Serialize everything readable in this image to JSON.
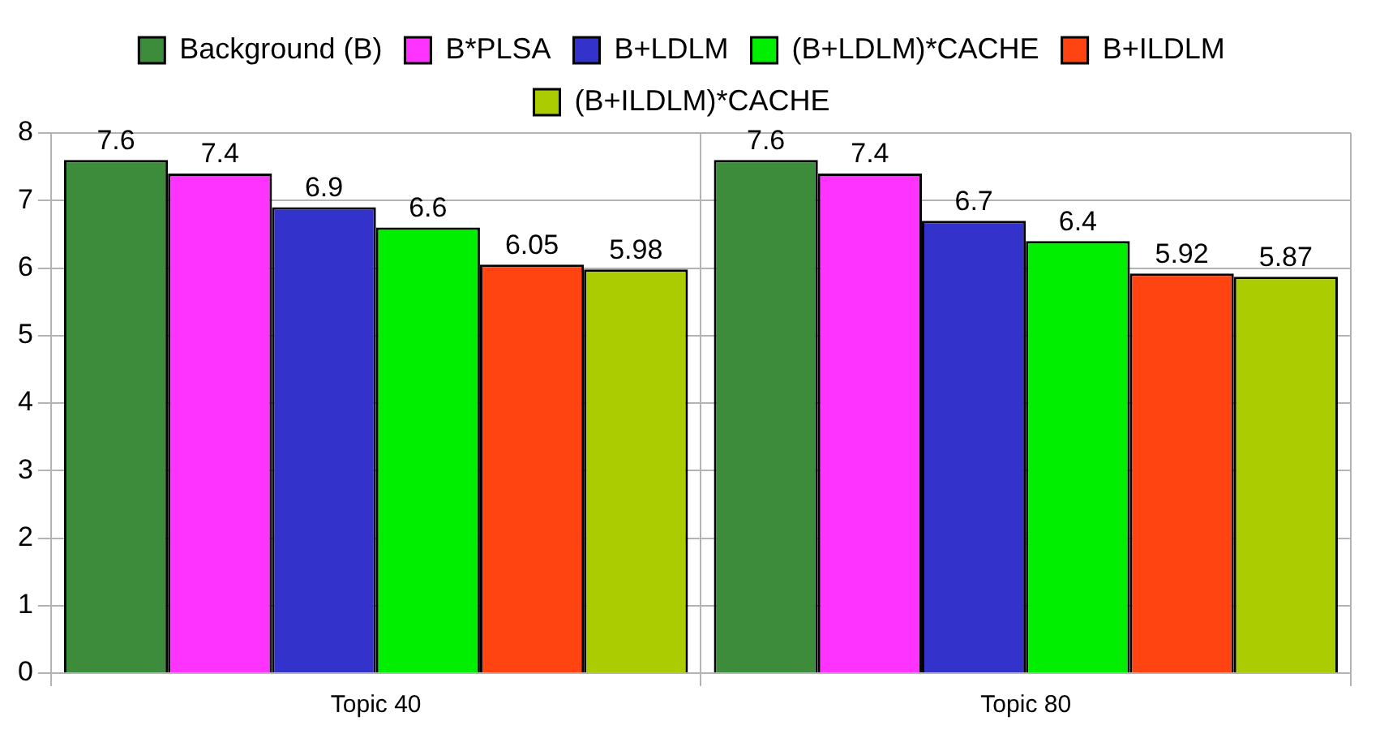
{
  "chart_data": {
    "type": "bar",
    "categories": [
      "Topic 40",
      "Topic 80"
    ],
    "series": [
      {
        "name": "Background (B)",
        "color": "#3c8c3c",
        "values": [
          7.6,
          7.6
        ]
      },
      {
        "name": "B*PLSA",
        "color": "#ff33ff",
        "values": [
          7.4,
          7.4
        ]
      },
      {
        "name": "B+LDLM",
        "color": "#3333cc",
        "values": [
          6.9,
          6.7
        ]
      },
      {
        "name": "(B+LDLM)*CACHE",
        "color": "#00ee00",
        "values": [
          6.6,
          6.4
        ]
      },
      {
        "name": "B+ILDLM",
        "color": "#ff4411",
        "values": [
          6.05,
          5.92
        ]
      },
      {
        "name": "(B+ILDLM)*CACHE",
        "color": "#aacc00",
        "values": [
          5.98,
          5.87
        ]
      }
    ],
    "ylim": [
      0,
      8
    ],
    "yticks": [
      0,
      1,
      2,
      3,
      4,
      5,
      6,
      7,
      8
    ],
    "grid": true,
    "legend": "top",
    "data_labels": true
  }
}
